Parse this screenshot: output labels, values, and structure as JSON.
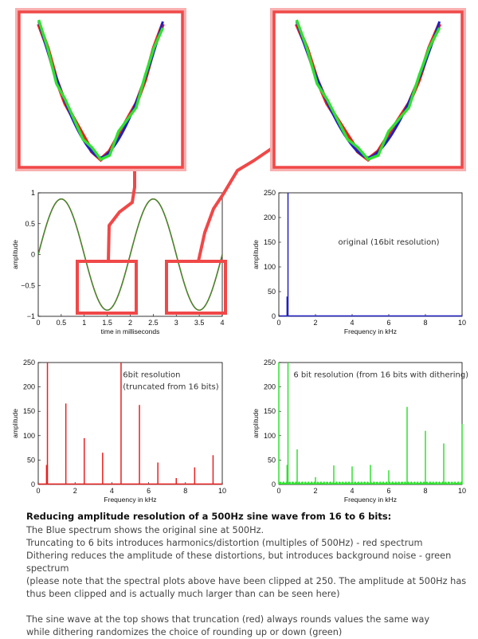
{
  "colors": {
    "original": "#2020c0",
    "truncated": "#e82020",
    "dithered": "#30e030",
    "highlight": "#f04848"
  },
  "chart_data": [
    {
      "type": "line",
      "id": "time",
      "xlabel": "time in milliseconds",
      "ylabel": "amplitude",
      "xlim": [
        0,
        4
      ],
      "ylim": [
        -1,
        1
      ],
      "xticks": [
        "0",
        "0.5",
        "1",
        "1.5",
        "2",
        "2.5",
        "3",
        "3.5",
        "4"
      ],
      "yticks": [
        "1",
        "0.5",
        "0",
        "-0.5",
        "-1"
      ],
      "series": [
        {
          "frequency_hz": 500,
          "amplitude": 0.9
        }
      ]
    },
    {
      "type": "bar",
      "id": "original",
      "xlabel": "Frequency in kHz",
      "ylabel": "amplitude",
      "xlim": [
        0,
        10
      ],
      "ylim": [
        0,
        250
      ],
      "xticks": [
        "0",
        "2",
        "4",
        "6",
        "8",
        "10"
      ],
      "yticks": [
        "250",
        "200",
        "150",
        "100",
        "50",
        "0"
      ],
      "annotation": "original (16bit resolution)",
      "x": [
        0.45,
        0.5
      ],
      "values": [
        40,
        250
      ]
    },
    {
      "type": "bar",
      "id": "truncated",
      "xlabel": "Frequency in kHz",
      "ylabel": "amplitude",
      "xlim": [
        0,
        10
      ],
      "ylim": [
        0,
        250
      ],
      "xticks": [
        "0",
        "2",
        "4",
        "6",
        "8",
        "10"
      ],
      "yticks": [
        "250",
        "200",
        "150",
        "100",
        "50",
        "0"
      ],
      "annotation": [
        "6bit resolution",
        "(truncated from 16 bits)"
      ],
      "x": [
        0.45,
        0.5,
        1.5,
        2.5,
        3.5,
        4.5,
        5.5,
        6.5,
        7.5,
        8.5,
        9.5
      ],
      "values": [
        40,
        250,
        166,
        95,
        65,
        250,
        163,
        45,
        13,
        35,
        60
      ]
    },
    {
      "type": "bar",
      "id": "dithered",
      "xlabel": "Frequency in kHz",
      "ylabel": "amplitude",
      "xlim": [
        0,
        10
      ],
      "ylim": [
        0,
        250
      ],
      "xticks": [
        "0",
        "2",
        "4",
        "6",
        "8",
        "10"
      ],
      "yticks": [
        "250",
        "200",
        "150",
        "100",
        "50",
        "0"
      ],
      "annotation": "6 bit resolution (from 16 bits with dithering)",
      "noise_floor": 5,
      "x": [
        0,
        0.45,
        0.5,
        1,
        2,
        3,
        4,
        5,
        6,
        7,
        8,
        9,
        10
      ],
      "values": [
        250,
        40,
        250,
        72,
        15,
        39,
        37,
        40,
        29,
        159,
        110,
        84,
        124
      ]
    }
  ],
  "text": {
    "heading": "Reducing amplitude resolution of a 500Hz sine wave from 16 to 6 bits:",
    "lines": [
      "The Blue spectrum shows the original sine at 500Hz.",
      "Truncating to 6 bits introduces harmonics/distortion (multiples of 500Hz) - red spectrum",
      "Dithering reduces the amplitude of these distortions, but introduces background noise - green spectrum",
      "(please note that the spectral plots above have been clipped at 250. The amplitude at 500Hz has thus been clipped and is actually much larger than can be seen here)"
    ],
    "lines2": [
      "The sine wave at the top shows that truncation (red) always rounds values the same way",
      "while dithering randomizes the choice of rounding up or down (green)"
    ]
  }
}
